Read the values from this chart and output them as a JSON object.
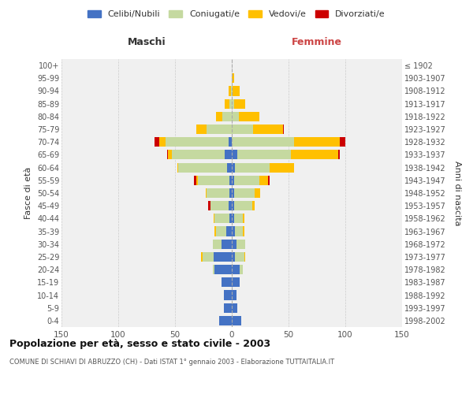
{
  "age_groups": [
    "0-4",
    "5-9",
    "10-14",
    "15-19",
    "20-24",
    "25-29",
    "30-34",
    "35-39",
    "40-44",
    "45-49",
    "50-54",
    "55-59",
    "60-64",
    "65-69",
    "70-74",
    "75-79",
    "80-84",
    "85-89",
    "90-94",
    "95-99",
    "100+"
  ],
  "birth_years": [
    "1998-2002",
    "1993-1997",
    "1988-1992",
    "1983-1987",
    "1978-1982",
    "1973-1977",
    "1968-1972",
    "1963-1967",
    "1958-1962",
    "1953-1957",
    "1948-1952",
    "1943-1947",
    "1938-1942",
    "1933-1937",
    "1928-1932",
    "1923-1927",
    "1918-1922",
    "1913-1917",
    "1908-1912",
    "1903-1907",
    "≤ 1902"
  ],
  "male": {
    "celibi": [
      11,
      7,
      7,
      9,
      15,
      16,
      9,
      5,
      2,
      3,
      2,
      2,
      4,
      6,
      3,
      0,
      0,
      0,
      0,
      0,
      0
    ],
    "coniugati": [
      0,
      0,
      0,
      0,
      2,
      10,
      8,
      9,
      13,
      16,
      20,
      28,
      43,
      47,
      55,
      22,
      8,
      2,
      1,
      0,
      0
    ],
    "vedovi": [
      0,
      0,
      0,
      0,
      0,
      1,
      0,
      1,
      1,
      0,
      1,
      1,
      1,
      3,
      6,
      9,
      6,
      4,
      2,
      0,
      0
    ],
    "divorziati": [
      0,
      0,
      0,
      0,
      0,
      0,
      0,
      0,
      0,
      2,
      0,
      2,
      0,
      1,
      4,
      0,
      0,
      0,
      0,
      0,
      0
    ]
  },
  "female": {
    "nubili": [
      8,
      5,
      4,
      7,
      7,
      3,
      4,
      3,
      2,
      2,
      2,
      2,
      3,
      5,
      0,
      0,
      0,
      0,
      0,
      0,
      0
    ],
    "coniugate": [
      0,
      0,
      0,
      0,
      3,
      8,
      8,
      7,
      8,
      16,
      18,
      22,
      30,
      47,
      55,
      19,
      6,
      2,
      1,
      0,
      0
    ],
    "vedove": [
      0,
      0,
      0,
      0,
      0,
      1,
      0,
      1,
      1,
      2,
      5,
      8,
      22,
      42,
      40,
      26,
      18,
      10,
      6,
      2,
      0
    ],
    "divorziate": [
      0,
      0,
      0,
      0,
      0,
      0,
      0,
      0,
      0,
      0,
      0,
      1,
      0,
      1,
      5,
      1,
      0,
      0,
      0,
      0,
      0
    ]
  },
  "colors": {
    "celibi": "#4472c4",
    "coniugati": "#c5d9a0",
    "vedovi": "#ffc000",
    "divorziati": "#cc0000"
  },
  "title": "Popolazione per età, sesso e stato civile - 2003",
  "subtitle": "COMUNE DI SCHIAVI DI ABRUZZO (CH) - Dati ISTAT 1° gennaio 2003 - Elaborazione TUTTAITALIA.IT",
  "xlabel_left": "Maschi",
  "xlabel_right": "Femmine",
  "ylabel_left": "Fasce di età",
  "ylabel_right": "Anni di nascita",
  "xlim": 150,
  "bg_color": "#ffffff",
  "plot_bg_color": "#f0f0f0",
  "grid_color": "#cccccc",
  "legend_labels": [
    "Celibi/Nubili",
    "Coniugati/e",
    "Vedovi/e",
    "Divorziati/e"
  ]
}
